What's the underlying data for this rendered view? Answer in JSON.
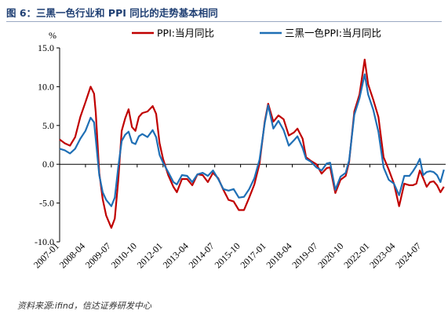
{
  "header": {
    "title": "图 6：三黑一色行业和 PPI 同比的走势基本相同"
  },
  "source": "资料来源:ifind，信达证券研发中心",
  "chart_data": {
    "type": "line",
    "title": "图 6：三黑一色行业和 PPI 同比的走势基本相同",
    "ylabel": "%",
    "xlabel": "",
    "ylim": [
      -10,
      15
    ],
    "yticks": [
      -10,
      -5,
      0,
      5,
      10,
      15
    ],
    "ytick_labels": [
      "-10.0",
      "-5.0",
      "0.0",
      "5.0",
      "10.0",
      "15.0"
    ],
    "xticks": [
      "2007-01",
      "2008-04",
      "2009-07",
      "2010-10",
      "2012-01",
      "2013-04",
      "2014-07",
      "2015-10",
      "2017-01",
      "2018-04",
      "2019-07",
      "2020-10",
      "2022-01",
      "2023-04",
      "2024-07"
    ],
    "legend_position": "top",
    "grid": false,
    "series": [
      {
        "name": "PPI:当月同比",
        "color": "#c00000",
        "points": [
          [
            "2007-01",
            3.2
          ],
          [
            "2007-04",
            2.7
          ],
          [
            "2007-07",
            2.4
          ],
          [
            "2007-10",
            3.5
          ],
          [
            "2008-01",
            6.1
          ],
          [
            "2008-04",
            8.0
          ],
          [
            "2008-07",
            10.0
          ],
          [
            "2008-09",
            9.1
          ],
          [
            "2008-10",
            6.6
          ],
          [
            "2008-12",
            -1.1
          ],
          [
            "2009-02",
            -4.5
          ],
          [
            "2009-04",
            -6.6
          ],
          [
            "2009-07",
            -8.2
          ],
          [
            "2009-09",
            -7.0
          ],
          [
            "2009-11",
            -2.1
          ],
          [
            "2010-01",
            4.3
          ],
          [
            "2010-03",
            5.9
          ],
          [
            "2010-05",
            7.1
          ],
          [
            "2010-07",
            4.8
          ],
          [
            "2010-09",
            4.3
          ],
          [
            "2010-11",
            6.1
          ],
          [
            "2011-01",
            6.6
          ],
          [
            "2011-04",
            6.8
          ],
          [
            "2011-07",
            7.5
          ],
          [
            "2011-09",
            6.5
          ],
          [
            "2011-11",
            2.7
          ],
          [
            "2012-01",
            0.7
          ],
          [
            "2012-04",
            -1.4
          ],
          [
            "2012-07",
            -2.9
          ],
          [
            "2012-09",
            -3.6
          ],
          [
            "2012-12",
            -1.9
          ],
          [
            "2013-03",
            -1.9
          ],
          [
            "2013-06",
            -2.7
          ],
          [
            "2013-09",
            -1.3
          ],
          [
            "2013-12",
            -1.4
          ],
          [
            "2014-03",
            -2.3
          ],
          [
            "2014-06",
            -1.1
          ],
          [
            "2014-09",
            -1.8
          ],
          [
            "2014-12",
            -3.3
          ],
          [
            "2015-03",
            -4.6
          ],
          [
            "2015-06",
            -4.8
          ],
          [
            "2015-09",
            -5.9
          ],
          [
            "2015-12",
            -5.9
          ],
          [
            "2016-03",
            -4.3
          ],
          [
            "2016-06",
            -2.6
          ],
          [
            "2016-09",
            0.1
          ],
          [
            "2016-12",
            5.5
          ],
          [
            "2017-02",
            7.8
          ],
          [
            "2017-05",
            5.5
          ],
          [
            "2017-08",
            6.3
          ],
          [
            "2017-11",
            5.8
          ],
          [
            "2018-02",
            3.7
          ],
          [
            "2018-05",
            4.1
          ],
          [
            "2018-07",
            4.6
          ],
          [
            "2018-10",
            3.3
          ],
          [
            "2018-12",
            0.9
          ],
          [
            "2019-03",
            0.4
          ],
          [
            "2019-06",
            0.0
          ],
          [
            "2019-09",
            -1.2
          ],
          [
            "2019-12",
            -0.5
          ],
          [
            "2020-02",
            -0.4
          ],
          [
            "2020-05",
            -3.7
          ],
          [
            "2020-08",
            -2.0
          ],
          [
            "2020-11",
            -1.5
          ],
          [
            "2021-01",
            0.3
          ],
          [
            "2021-04",
            6.8
          ],
          [
            "2021-07",
            9.0
          ],
          [
            "2021-10",
            13.5
          ],
          [
            "2021-12",
            10.3
          ],
          [
            "2022-03",
            8.3
          ],
          [
            "2022-06",
            6.1
          ],
          [
            "2022-09",
            0.9
          ],
          [
            "2022-12",
            -0.7
          ],
          [
            "2023-03",
            -2.5
          ],
          [
            "2023-06",
            -5.4
          ],
          [
            "2023-09",
            -2.5
          ],
          [
            "2023-12",
            -2.7
          ],
          [
            "2024-02",
            -2.7
          ],
          [
            "2024-04",
            -2.5
          ],
          [
            "2024-06",
            -0.8
          ],
          [
            "2024-08",
            -1.8
          ],
          [
            "2024-10",
            -2.9
          ],
          [
            "2024-12",
            -2.3
          ],
          [
            "2025-02",
            -2.2
          ],
          [
            "2025-04",
            -2.7
          ],
          [
            "2025-06",
            -3.6
          ],
          [
            "2025-08",
            -2.9
          ]
        ]
      },
      {
        "name": "三黑一色PPI:当月同比",
        "color": "#1f6fb5",
        "points": [
          [
            "2007-01",
            2.0
          ],
          [
            "2007-04",
            1.8
          ],
          [
            "2007-07",
            1.4
          ],
          [
            "2007-10",
            2.0
          ],
          [
            "2008-01",
            3.3
          ],
          [
            "2008-04",
            4.3
          ],
          [
            "2008-07",
            6.0
          ],
          [
            "2008-09",
            5.4
          ],
          [
            "2008-10",
            3.2
          ],
          [
            "2008-12",
            -1.4
          ],
          [
            "2009-02",
            -3.6
          ],
          [
            "2009-04",
            -4.6
          ],
          [
            "2009-07",
            -5.4
          ],
          [
            "2009-09",
            -4.3
          ],
          [
            "2009-11",
            -0.4
          ],
          [
            "2010-01",
            3.0
          ],
          [
            "2010-03",
            3.8
          ],
          [
            "2010-05",
            4.2
          ],
          [
            "2010-07",
            2.8
          ],
          [
            "2010-09",
            2.6
          ],
          [
            "2010-11",
            3.6
          ],
          [
            "2011-01",
            3.9
          ],
          [
            "2011-04",
            3.5
          ],
          [
            "2011-07",
            4.4
          ],
          [
            "2011-09",
            3.5
          ],
          [
            "2011-11",
            1.2
          ],
          [
            "2012-01",
            0.2
          ],
          [
            "2012-04",
            -1.0
          ],
          [
            "2012-07",
            -2.3
          ],
          [
            "2012-09",
            -2.6
          ],
          [
            "2012-12",
            -1.4
          ],
          [
            "2013-03",
            -1.5
          ],
          [
            "2013-06",
            -2.3
          ],
          [
            "2013-09",
            -1.3
          ],
          [
            "2013-12",
            -1.1
          ],
          [
            "2014-03",
            -1.5
          ],
          [
            "2014-06",
            -0.8
          ],
          [
            "2014-09",
            -1.9
          ],
          [
            "2014-12",
            -3.2
          ],
          [
            "2015-03",
            -3.4
          ],
          [
            "2015-06",
            -3.2
          ],
          [
            "2015-09",
            -4.3
          ],
          [
            "2015-12",
            -4.2
          ],
          [
            "2016-03",
            -3.2
          ],
          [
            "2016-06",
            -1.8
          ],
          [
            "2016-09",
            0.6
          ],
          [
            "2016-12",
            5.3
          ],
          [
            "2017-02",
            7.6
          ],
          [
            "2017-05",
            4.6
          ],
          [
            "2017-08",
            5.6
          ],
          [
            "2017-11",
            4.4
          ],
          [
            "2018-02",
            2.4
          ],
          [
            "2018-05",
            3.1
          ],
          [
            "2018-07",
            3.6
          ],
          [
            "2018-10",
            2.1
          ],
          [
            "2018-12",
            0.7
          ],
          [
            "2019-03",
            0.3
          ],
          [
            "2019-06",
            -0.4
          ],
          [
            "2019-09",
            -0.8
          ],
          [
            "2019-12",
            0.1
          ],
          [
            "2020-02",
            0.2
          ],
          [
            "2020-05",
            -3.3
          ],
          [
            "2020-08",
            -1.6
          ],
          [
            "2020-11",
            -1.1
          ],
          [
            "2021-01",
            0.5
          ],
          [
            "2021-04",
            6.4
          ],
          [
            "2021-07",
            8.5
          ],
          [
            "2021-10",
            11.6
          ],
          [
            "2021-12",
            9.0
          ],
          [
            "2022-03",
            7.0
          ],
          [
            "2022-06",
            4.2
          ],
          [
            "2022-09",
            -0.4
          ],
          [
            "2022-12",
            -2.0
          ],
          [
            "2023-03",
            -2.5
          ],
          [
            "2023-06",
            -4.0
          ],
          [
            "2023-09",
            -1.5
          ],
          [
            "2023-12",
            -1.5
          ],
          [
            "2024-02",
            -0.9
          ],
          [
            "2024-04",
            -0.2
          ],
          [
            "2024-06",
            0.7
          ],
          [
            "2024-08",
            -1.4
          ],
          [
            "2024-10",
            -1.0
          ],
          [
            "2024-12",
            -0.9
          ],
          [
            "2025-02",
            -1.0
          ],
          [
            "2025-04",
            -1.4
          ],
          [
            "2025-06",
            -2.3
          ],
          [
            "2025-08",
            -0.7
          ]
        ]
      }
    ]
  }
}
